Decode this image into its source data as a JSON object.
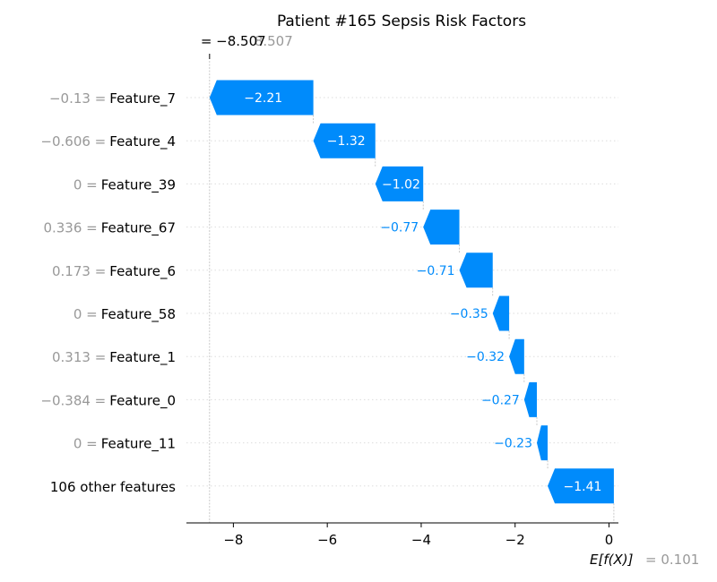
{
  "chart_data": {
    "type": "waterfall",
    "title": "Patient #165 Sepsis Risk Factors",
    "fx_label": "= −8.507",
    "fx_label_ghost": "8.507",
    "fx_value": -8.507,
    "base_value": 0.101,
    "base_label": "E[f(X)]",
    "base_value_label": "= 0.101",
    "xlim": [
      -9,
      0.2
    ],
    "xticks": [
      -8,
      -6,
      -4,
      -2,
      0
    ],
    "xtick_labels": [
      "−8",
      "−6",
      "−4",
      "−2",
      "0"
    ],
    "colors": {
      "negative": "#008bfb",
      "positive": "#ff0051"
    },
    "features": [
      {
        "value_label": "−0.13",
        "name": "Feature_7",
        "contribution": -2.21,
        "label": "−2.21"
      },
      {
        "value_label": "−0.606",
        "name": "Feature_4",
        "contribution": -1.32,
        "label": "−1.32"
      },
      {
        "value_label": "0",
        "name": "Feature_39",
        "contribution": -1.02,
        "label": "−1.02"
      },
      {
        "value_label": "0.336",
        "name": "Feature_67",
        "contribution": -0.77,
        "label": "−0.77"
      },
      {
        "value_label": "0.173",
        "name": "Feature_6",
        "contribution": -0.71,
        "label": "−0.71"
      },
      {
        "value_label": "0",
        "name": "Feature_58",
        "contribution": -0.35,
        "label": "−0.35"
      },
      {
        "value_label": "0.313",
        "name": "Feature_1",
        "contribution": -0.32,
        "label": "−0.32"
      },
      {
        "value_label": "−0.384",
        "name": "Feature_0",
        "contribution": -0.27,
        "label": "−0.27"
      },
      {
        "value_label": "0",
        "name": "Feature_11",
        "contribution": -0.23,
        "label": "−0.23"
      },
      {
        "value_label": "",
        "name": "106 other features",
        "contribution": -1.41,
        "label": "−1.41"
      }
    ]
  }
}
